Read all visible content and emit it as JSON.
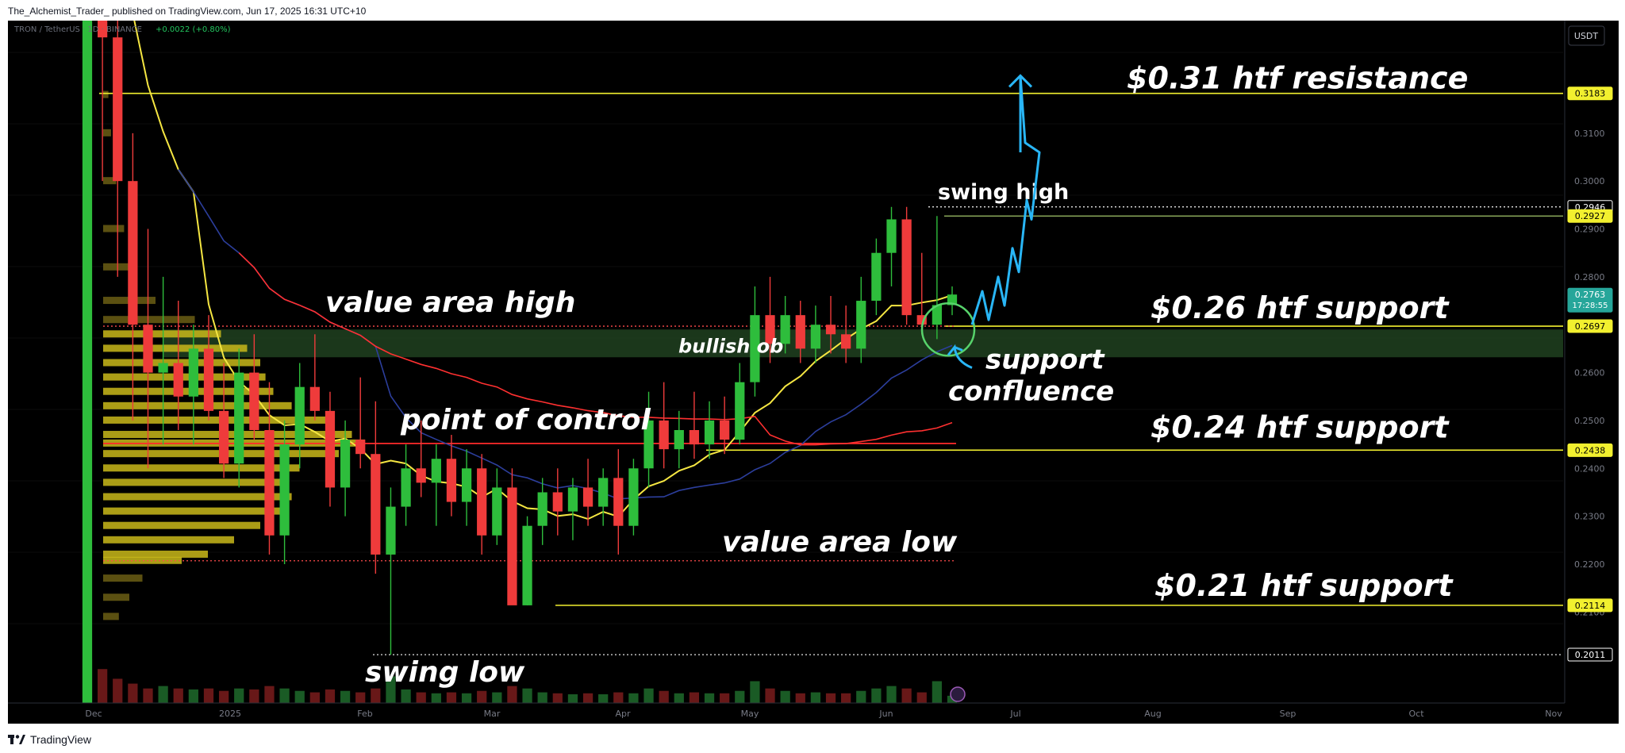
{
  "header": {
    "publisher_line": "The_Alchemist_Trader_ published on TradingView.com, Jun 17, 2025 16:31 UTC+10"
  },
  "footer": {
    "brand": "TradingView"
  },
  "legend": {
    "symbol": "TRON / TetherUS · 1D · BINANCE",
    "change": "+0.0022 (+0.80%)",
    "currency_button": "USDT"
  },
  "colors": {
    "background": "#000000",
    "bull": "#26a69a",
    "bull_candle": "#2ebd3c",
    "bear": "#ef3b3b",
    "level_line": "#f2f02f",
    "poc_line": "#ff2a2a",
    "ma_slow": "#ff3030",
    "ma_fast": "#f5e642",
    "ma_blue": "#2c3e9c",
    "annotation": "#ffffff",
    "projection": "#29b6f6",
    "circle": "#57d36b",
    "ob_zone": "#1e3d1e",
    "price_badge": "#26a69a"
  },
  "chart_data": {
    "type": "candlestick",
    "title": "",
    "xlabel": "",
    "ylabel": "",
    "x_ticks": [
      "Dec",
      "2025",
      "Feb",
      "Mar",
      "Apr",
      "May",
      "Jun",
      "Jul",
      "Aug",
      "Sep",
      "Oct",
      "Nov"
    ],
    "y_ticks": [
      0.31,
      0.3,
      0.29,
      0.28,
      0.26,
      0.25,
      0.24,
      0.23,
      0.22,
      0.21
    ],
    "y_tick_labels": [
      "0.3100",
      "0.3000",
      "0.2900",
      "0.2800",
      "0.2600",
      "0.2500",
      "0.2400",
      "0.2300",
      "0.2200",
      "0.2100"
    ],
    "ylim": [
      0.191,
      0.3335
    ],
    "price_labels": [
      {
        "label": "0.3183",
        "value": 0.3183,
        "style": "level"
      },
      {
        "label": "0.2946",
        "value": 0.2946,
        "style": "plain"
      },
      {
        "label": "0.2927",
        "value": 0.2927,
        "style": "level"
      },
      {
        "label": "0.2763",
        "value": 0.2763,
        "style": "current",
        "countdown": "17:28:55"
      },
      {
        "label": "0.2697",
        "value": 0.2697,
        "style": "level"
      },
      {
        "label": "0.2438",
        "value": 0.2438,
        "style": "level"
      },
      {
        "label": "0.2114",
        "value": 0.2114,
        "style": "level"
      },
      {
        "label": "0.2011",
        "value": 0.2011,
        "style": "plain"
      }
    ],
    "levels": [
      {
        "name": "$0.31 htf resistance",
        "value": 0.3183
      },
      {
        "name": "$0.26 htf support",
        "value": 0.2697
      },
      {
        "name": "$0.24 htf support",
        "value": 0.2438
      },
      {
        "name": "$0.21 htf support",
        "value": 0.2114
      }
    ],
    "annotations": {
      "resistance": "$0.31 htf resistance",
      "support_026": "$0.26 htf support",
      "support_024": "$0.24 htf support",
      "support_021": "$0.21 htf support",
      "value_area_high": "value area high",
      "point_of_control": "point of control",
      "value_area_low": "value area low",
      "bullish_ob": "bullish ob",
      "support_confluence_1": "support",
      "support_confluence_2": "confluence",
      "swing_high": "swing high",
      "swing_low": "swing low"
    },
    "value_area_high": 0.2697,
    "point_of_control": 0.2452,
    "value_area_low": 0.2207,
    "bullish_ob_zone": [
      0.2632,
      0.269
    ],
    "swing_high": 0.2946,
    "swing_low": 0.2011,
    "current_price": 0.2763,
    "candles": [
      {
        "o": 0.13,
        "h": 0.45,
        "l": 0.12,
        "c": 0.44
      },
      {
        "o": 0.44,
        "h": 0.45,
        "l": 0.3,
        "c": 0.33
      },
      {
        "o": 0.33,
        "h": 0.34,
        "l": 0.28,
        "c": 0.3
      },
      {
        "o": 0.3,
        "h": 0.31,
        "l": 0.25,
        "c": 0.27
      },
      {
        "o": 0.27,
        "h": 0.29,
        "l": 0.24,
        "c": 0.26
      },
      {
        "o": 0.26,
        "h": 0.28,
        "l": 0.245,
        "c": 0.262
      },
      {
        "o": 0.262,
        "h": 0.275,
        "l": 0.248,
        "c": 0.255
      },
      {
        "o": 0.255,
        "h": 0.27,
        "l": 0.245,
        "c": 0.265
      },
      {
        "o": 0.265,
        "h": 0.272,
        "l": 0.25,
        "c": 0.252
      },
      {
        "o": 0.252,
        "h": 0.262,
        "l": 0.238,
        "c": 0.241
      },
      {
        "o": 0.241,
        "h": 0.265,
        "l": 0.236,
        "c": 0.26
      },
      {
        "o": 0.26,
        "h": 0.268,
        "l": 0.246,
        "c": 0.248
      },
      {
        "o": 0.248,
        "h": 0.258,
        "l": 0.222,
        "c": 0.226
      },
      {
        "o": 0.226,
        "h": 0.25,
        "l": 0.22,
        "c": 0.245
      },
      {
        "o": 0.245,
        "h": 0.262,
        "l": 0.24,
        "c": 0.257
      },
      {
        "o": 0.257,
        "h": 0.268,
        "l": 0.25,
        "c": 0.252
      },
      {
        "o": 0.252,
        "h": 0.256,
        "l": 0.232,
        "c": 0.236
      },
      {
        "o": 0.236,
        "h": 0.25,
        "l": 0.23,
        "c": 0.246
      },
      {
        "o": 0.246,
        "h": 0.259,
        "l": 0.24,
        "c": 0.243
      },
      {
        "o": 0.243,
        "h": 0.254,
        "l": 0.218,
        "c": 0.222
      },
      {
        "o": 0.222,
        "h": 0.236,
        "l": 0.2011,
        "c": 0.232
      },
      {
        "o": 0.232,
        "h": 0.245,
        "l": 0.228,
        "c": 0.24
      },
      {
        "o": 0.24,
        "h": 0.25,
        "l": 0.234,
        "c": 0.237
      },
      {
        "o": 0.237,
        "h": 0.245,
        "l": 0.228,
        "c": 0.242
      },
      {
        "o": 0.242,
        "h": 0.247,
        "l": 0.23,
        "c": 0.233
      },
      {
        "o": 0.233,
        "h": 0.244,
        "l": 0.228,
        "c": 0.24
      },
      {
        "o": 0.24,
        "h": 0.243,
        "l": 0.222,
        "c": 0.226
      },
      {
        "o": 0.226,
        "h": 0.24,
        "l": 0.224,
        "c": 0.236
      },
      {
        "o": 0.236,
        "h": 0.24,
        "l": 0.212,
        "c": 0.2114
      },
      {
        "o": 0.2114,
        "h": 0.23,
        "l": 0.2114,
        "c": 0.228
      },
      {
        "o": 0.228,
        "h": 0.238,
        "l": 0.224,
        "c": 0.235
      },
      {
        "o": 0.235,
        "h": 0.24,
        "l": 0.226,
        "c": 0.231
      },
      {
        "o": 0.231,
        "h": 0.238,
        "l": 0.225,
        "c": 0.236
      },
      {
        "o": 0.236,
        "h": 0.242,
        "l": 0.228,
        "c": 0.232
      },
      {
        "o": 0.232,
        "h": 0.24,
        "l": 0.228,
        "c": 0.238
      },
      {
        "o": 0.238,
        "h": 0.244,
        "l": 0.222,
        "c": 0.228
      },
      {
        "o": 0.228,
        "h": 0.242,
        "l": 0.226,
        "c": 0.24
      },
      {
        "o": 0.24,
        "h": 0.256,
        "l": 0.236,
        "c": 0.25
      },
      {
        "o": 0.25,
        "h": 0.258,
        "l": 0.24,
        "c": 0.244
      },
      {
        "o": 0.244,
        "h": 0.252,
        "l": 0.24,
        "c": 0.248
      },
      {
        "o": 0.248,
        "h": 0.256,
        "l": 0.242,
        "c": 0.245
      },
      {
        "o": 0.245,
        "h": 0.254,
        "l": 0.242,
        "c": 0.25
      },
      {
        "o": 0.25,
        "h": 0.255,
        "l": 0.243,
        "c": 0.246
      },
      {
        "o": 0.246,
        "h": 0.262,
        "l": 0.245,
        "c": 0.258
      },
      {
        "o": 0.258,
        "h": 0.278,
        "l": 0.255,
        "c": 0.272
      },
      {
        "o": 0.272,
        "h": 0.28,
        "l": 0.262,
        "c": 0.266
      },
      {
        "o": 0.266,
        "h": 0.276,
        "l": 0.264,
        "c": 0.272
      },
      {
        "o": 0.272,
        "h": 0.275,
        "l": 0.262,
        "c": 0.265
      },
      {
        "o": 0.265,
        "h": 0.274,
        "l": 0.262,
        "c": 0.27
      },
      {
        "o": 0.27,
        "h": 0.276,
        "l": 0.264,
        "c": 0.268
      },
      {
        "o": 0.268,
        "h": 0.274,
        "l": 0.262,
        "c": 0.265
      },
      {
        "o": 0.265,
        "h": 0.28,
        "l": 0.262,
        "c": 0.275
      },
      {
        "o": 0.275,
        "h": 0.288,
        "l": 0.272,
        "c": 0.285
      },
      {
        "o": 0.285,
        "h": 0.2946,
        "l": 0.278,
        "c": 0.292
      },
      {
        "o": 0.292,
        "h": 0.2946,
        "l": 0.27,
        "c": 0.272
      },
      {
        "o": 0.272,
        "h": 0.285,
        "l": 0.268,
        "c": 0.27
      },
      {
        "o": 0.27,
        "h": 0.2927,
        "l": 0.267,
        "c": 0.2741
      },
      {
        "o": 0.2741,
        "h": 0.278,
        "l": 0.272,
        "c": 0.2763
      }
    ],
    "volume": [
      0.9,
      0.7,
      0.5,
      0.4,
      0.3,
      0.35,
      0.3,
      0.28,
      0.3,
      0.25,
      0.3,
      0.28,
      0.35,
      0.3,
      0.25,
      0.22,
      0.28,
      0.25,
      0.22,
      0.3,
      0.55,
      0.28,
      0.22,
      0.2,
      0.22,
      0.2,
      0.25,
      0.22,
      0.35,
      0.3,
      0.22,
      0.2,
      0.18,
      0.2,
      0.18,
      0.22,
      0.2,
      0.3,
      0.25,
      0.2,
      0.22,
      0.2,
      0.2,
      0.25,
      0.45,
      0.3,
      0.25,
      0.2,
      0.22,
      0.2,
      0.2,
      0.25,
      0.3,
      0.35,
      0.3,
      0.22,
      0.45,
      0.15
    ],
    "volume_profile": [
      {
        "price": 0.318,
        "v": 0.02
      },
      {
        "price": 0.31,
        "v": 0.03
      },
      {
        "price": 0.3,
        "v": 0.05
      },
      {
        "price": 0.29,
        "v": 0.08
      },
      {
        "price": 0.282,
        "v": 0.1
      },
      {
        "price": 0.275,
        "v": 0.2
      },
      {
        "price": 0.271,
        "v": 0.35
      },
      {
        "price": 0.268,
        "v": 0.45
      },
      {
        "price": 0.265,
        "v": 0.55
      },
      {
        "price": 0.262,
        "v": 0.6
      },
      {
        "price": 0.259,
        "v": 0.62
      },
      {
        "price": 0.256,
        "v": 0.65
      },
      {
        "price": 0.253,
        "v": 0.72
      },
      {
        "price": 0.25,
        "v": 0.85
      },
      {
        "price": 0.247,
        "v": 0.95
      },
      {
        "price": 0.2452,
        "v": 1.0
      },
      {
        "price": 0.243,
        "v": 0.9
      },
      {
        "price": 0.24,
        "v": 0.75
      },
      {
        "price": 0.237,
        "v": 0.7
      },
      {
        "price": 0.234,
        "v": 0.72
      },
      {
        "price": 0.231,
        "v": 0.68
      },
      {
        "price": 0.228,
        "v": 0.6
      },
      {
        "price": 0.225,
        "v": 0.5
      },
      {
        "price": 0.222,
        "v": 0.4
      },
      {
        "price": 0.2207,
        "v": 0.3
      },
      {
        "price": 0.217,
        "v": 0.15
      },
      {
        "price": 0.213,
        "v": 0.1
      },
      {
        "price": 0.209,
        "v": 0.06
      }
    ]
  }
}
